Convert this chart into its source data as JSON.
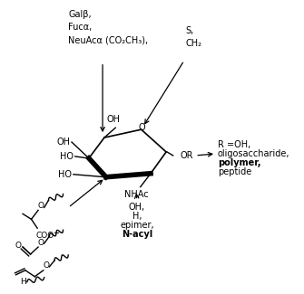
{
  "bg_color": "#ffffff",
  "figsize": [
    3.35,
    3.25
  ],
  "dpi": 100,
  "fs": 7.0,
  "top_left_text": "Galβ,\nFucα,\nNeuAcα (CO₂CH₃),",
  "top_right_text": "S,\nCH₂",
  "right_text_line1": "R =OH,",
  "right_text_line2": "oligosaccharide,",
  "right_text_line3": "polymer,",
  "right_text_line4": "peptide",
  "bottom_text": "OH,\nH,\nepimer,",
  "bottom_text_bold": "N-acyl",
  "nhac_label": "NHAc",
  "or_label": "OR",
  "oh_label": "OH",
  "ho_label": "HO"
}
